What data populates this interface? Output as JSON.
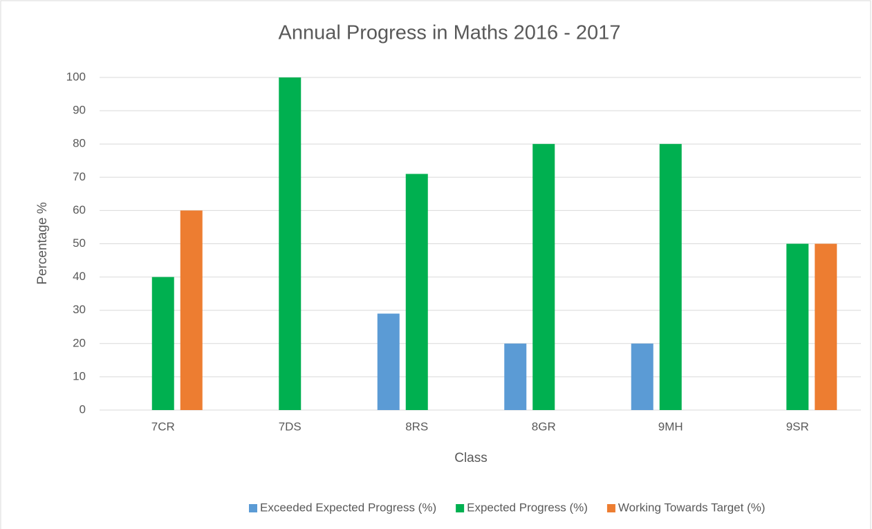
{
  "chart_data": {
    "type": "bar",
    "title": "Annual Progress in Maths 2016 - 2017",
    "x_label": "Class",
    "y_label": "Percentage %",
    "categories": [
      "7CR",
      "7DS",
      "8RS",
      "8GR",
      "9MH",
      "9SR"
    ],
    "series": [
      {
        "name": "Exceeded Expected Progress (%)",
        "color": "#5b9bd5",
        "values": [
          0,
          0,
          29,
          20,
          20,
          0
        ]
      },
      {
        "name": "Expected Progress (%)",
        "color": "#00b050",
        "values": [
          40,
          100,
          71,
          80,
          80,
          50
        ]
      },
      {
        "name": "Working Towards Target (%)",
        "color": "#ed7d31",
        "values": [
          60,
          0,
          0,
          0,
          0,
          50
        ]
      }
    ],
    "ylim": [
      0,
      100
    ],
    "yticks": [
      0,
      10,
      20,
      30,
      40,
      50,
      60,
      70,
      80,
      90,
      100
    ],
    "grid": true,
    "legend": "bottom"
  }
}
